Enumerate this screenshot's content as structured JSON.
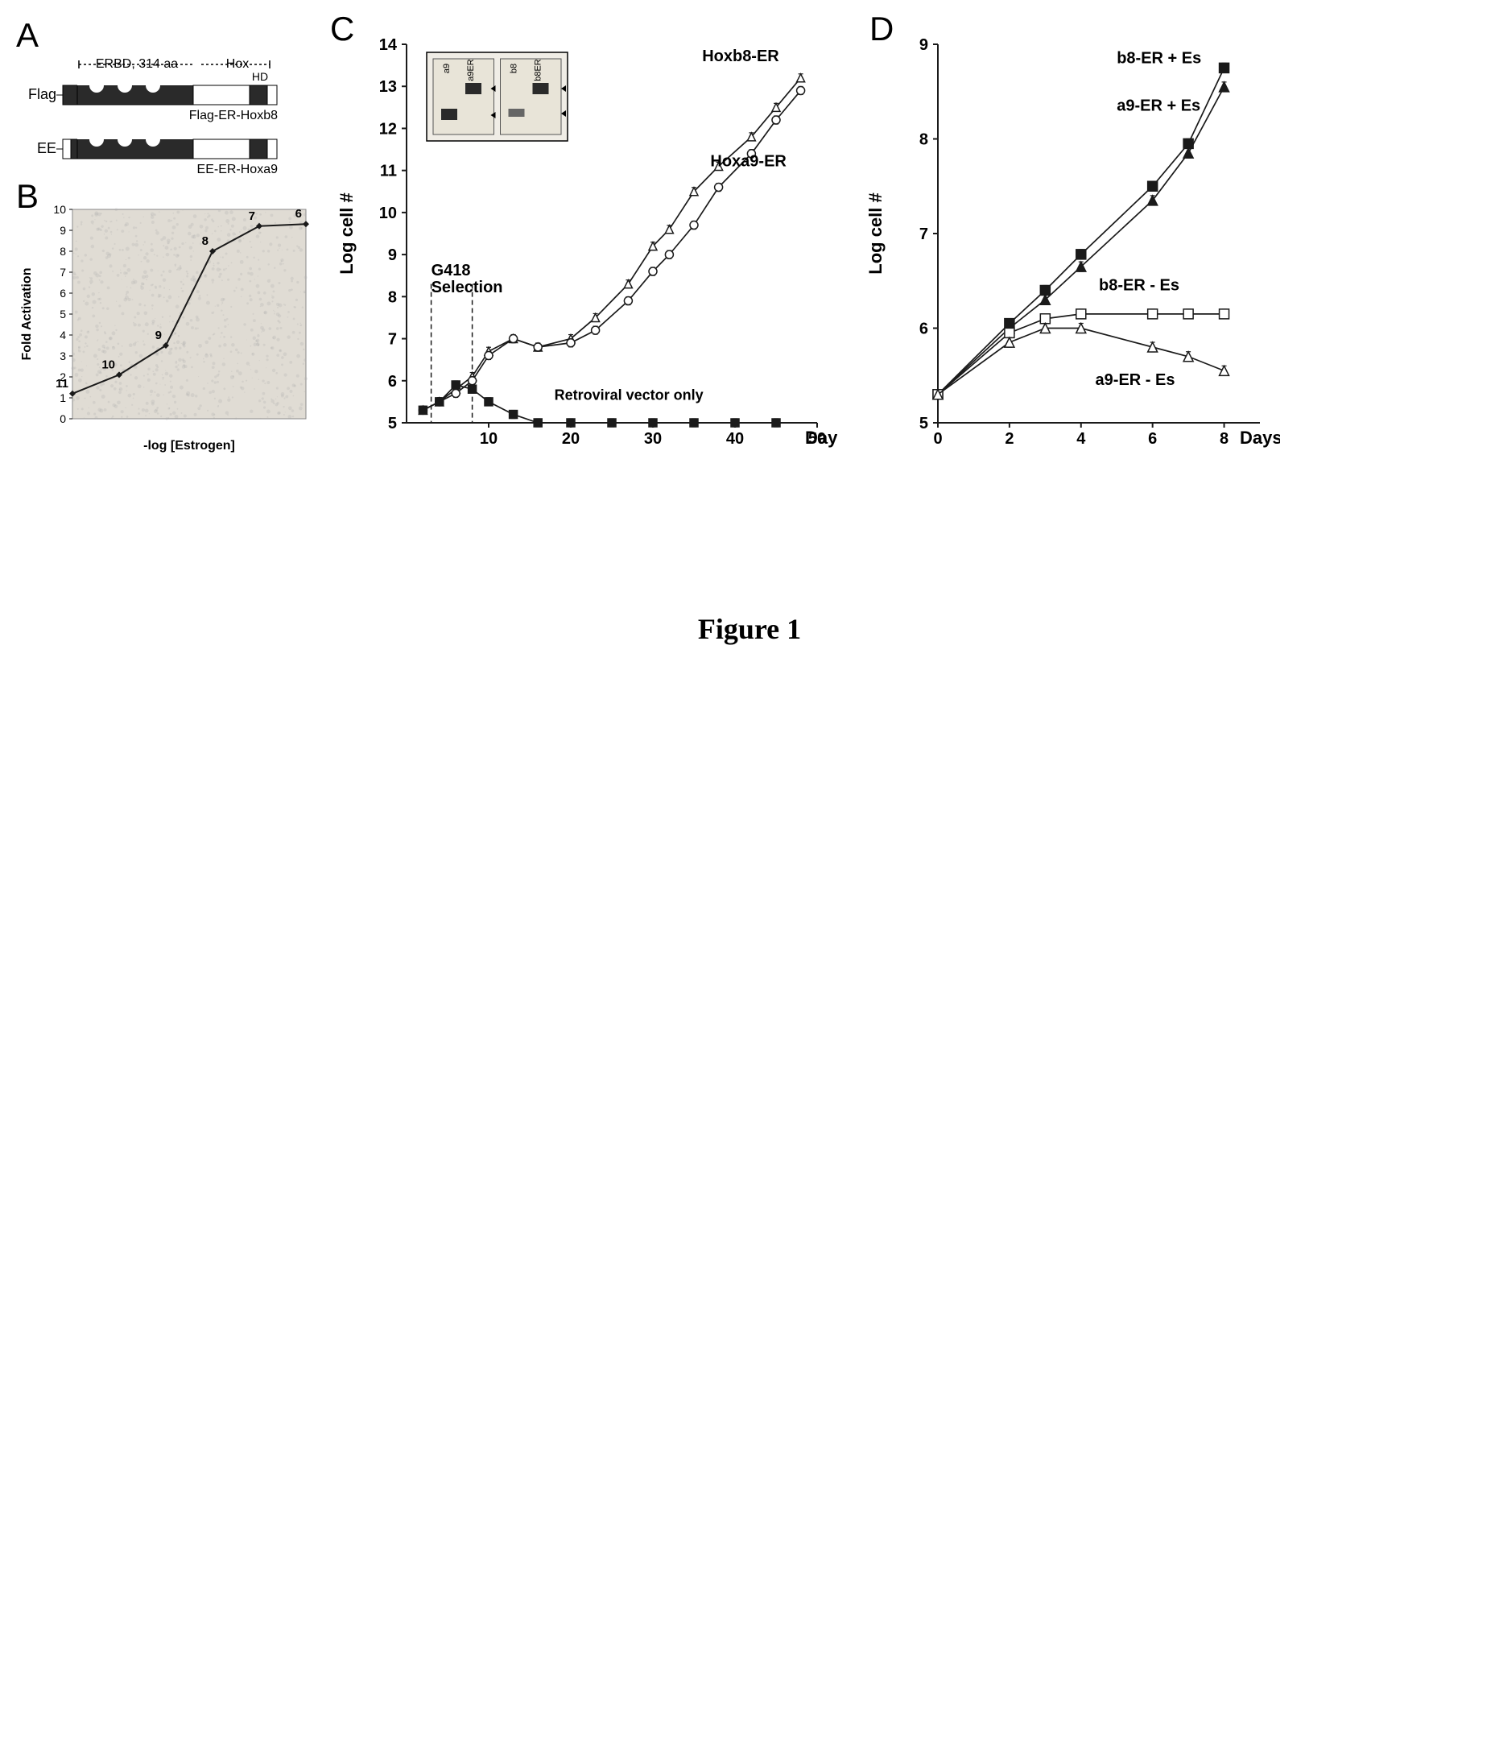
{
  "figure_caption": "Figure 1",
  "panel_a": {
    "label": "A",
    "top_label": "ERBD, 314 aa",
    "hox_label": "Hox",
    "hd_label": "HD",
    "flag_label": "Flag",
    "ee_label": "EE",
    "construct1": "Flag-ER-Hoxb8",
    "construct2": "EE-ER-Hoxa9",
    "bg_color": "#ffffff",
    "bar_dark": "#2a2a2a",
    "bar_light": "#ffffff",
    "text_color": "#000000",
    "font_size": 18
  },
  "panel_b": {
    "label": "B",
    "type": "line",
    "xlabel": "-log [Estrogen]",
    "ylabel": "Fold Activation",
    "x_values": [
      1,
      2,
      3,
      4,
      5,
      6
    ],
    "y_values": [
      1.2,
      2.1,
      3.5,
      8.0,
      9.2,
      9.3
    ],
    "point_labels": [
      "11",
      "10",
      "9",
      "8",
      "7",
      "6"
    ],
    "ylim": [
      0,
      10
    ],
    "ytick_step": 1,
    "bg_color": "#e0dcd4",
    "line_color": "#1a1a1a",
    "marker_color": "#1a1a1a",
    "text_color": "#000000",
    "label_fontsize": 16,
    "tick_fontsize": 14,
    "noise_texture": true
  },
  "panel_c": {
    "label": "C",
    "type": "line",
    "xlabel": "Days",
    "ylabel": "Log cell #",
    "xlim": [
      0,
      50
    ],
    "ylim": [
      5,
      14
    ],
    "xtick_step": 10,
    "ytick_step": 1,
    "series": [
      {
        "name": "Hoxb8-ER",
        "marker": "triangle",
        "color": "#1a1a1a",
        "fill": "#ffffff",
        "x": [
          2,
          4,
          6,
          8,
          10,
          13,
          16,
          20,
          23,
          27,
          30,
          32,
          35,
          38,
          42,
          45,
          48
        ],
        "y": [
          5.3,
          5.5,
          5.8,
          6.1,
          6.7,
          7.0,
          6.8,
          7.0,
          7.5,
          8.3,
          9.2,
          9.6,
          10.5,
          11.1,
          11.8,
          12.5,
          13.2
        ]
      },
      {
        "name": "Hoxa9-ER",
        "marker": "circle",
        "color": "#1a1a1a",
        "fill": "#ffffff",
        "x": [
          2,
          4,
          6,
          8,
          10,
          13,
          16,
          20,
          23,
          27,
          30,
          32,
          35,
          38,
          42,
          45,
          48
        ],
        "y": [
          5.3,
          5.5,
          5.7,
          6.0,
          6.6,
          7.0,
          6.8,
          6.9,
          7.2,
          7.9,
          8.6,
          9.0,
          9.7,
          10.6,
          11.4,
          12.2,
          12.9
        ]
      },
      {
        "name": "Retroviral vector only",
        "marker": "square",
        "color": "#1a1a1a",
        "fill": "#1a1a1a",
        "x": [
          2,
          4,
          6,
          8,
          10,
          13,
          16,
          20,
          25,
          30,
          35,
          40,
          45
        ],
        "y": [
          5.3,
          5.5,
          5.9,
          5.8,
          5.5,
          5.2,
          5.0,
          5.0,
          5.0,
          5.0,
          5.0,
          5.0,
          5.0
        ]
      }
    ],
    "g418_label": "G418\nSelection",
    "g418_lines": [
      3,
      8
    ],
    "inset_labels": [
      "a9",
      "a9ER",
      "b8",
      "b8ER"
    ],
    "bg_color": "#ffffff",
    "axis_color": "#1a1a1a",
    "label_fontsize": 22,
    "tick_fontsize": 20
  },
  "panel_d": {
    "label": "D",
    "type": "line",
    "xlabel": "Days",
    "ylabel": "Log cell #",
    "xlim": [
      0,
      9
    ],
    "ylim": [
      5,
      9
    ],
    "xtick_step": 2,
    "ytick_step": 1,
    "series": [
      {
        "name": "b8-ER + Es",
        "marker": "square",
        "color": "#1a1a1a",
        "fill": "#1a1a1a",
        "x": [
          0,
          2,
          3,
          4,
          6,
          7,
          8
        ],
        "y": [
          5.3,
          6.05,
          6.4,
          6.78,
          7.5,
          7.95,
          8.75
        ]
      },
      {
        "name": "a9-ER + Es",
        "marker": "triangle",
        "color": "#1a1a1a",
        "fill": "#1a1a1a",
        "x": [
          0,
          2,
          3,
          4,
          6,
          7,
          8
        ],
        "y": [
          5.3,
          6.0,
          6.3,
          6.65,
          7.35,
          7.85,
          8.55
        ]
      },
      {
        "name": "b8-ER - Es",
        "marker": "square",
        "color": "#1a1a1a",
        "fill": "#ffffff",
        "x": [
          0,
          2,
          3,
          4,
          6,
          7,
          8
        ],
        "y": [
          5.3,
          5.95,
          6.1,
          6.15,
          6.15,
          6.15,
          6.15
        ]
      },
      {
        "name": "a9-ER - Es",
        "marker": "triangle",
        "color": "#1a1a1a",
        "fill": "#ffffff",
        "x": [
          0,
          2,
          3,
          4,
          6,
          7,
          8
        ],
        "y": [
          5.3,
          5.85,
          6.0,
          6.0,
          5.8,
          5.7,
          5.55
        ]
      }
    ],
    "bg_color": "#ffffff",
    "axis_color": "#1a1a1a",
    "label_fontsize": 22,
    "tick_fontsize": 20
  }
}
